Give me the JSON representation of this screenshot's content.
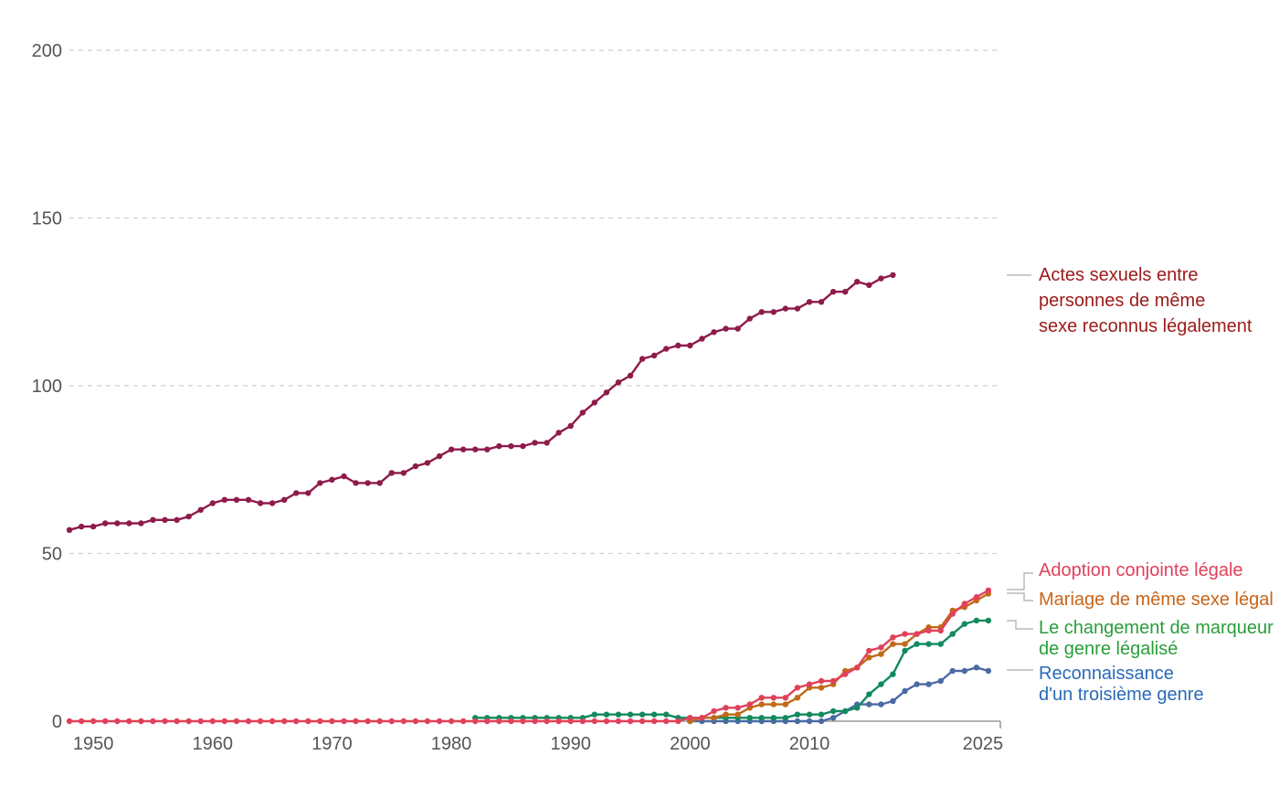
{
  "chart_data": {
    "type": "line",
    "title": "",
    "xlabel": "",
    "ylabel": "",
    "xlim": [
      1948,
      2026
    ],
    "ylim": [
      0,
      200
    ],
    "y_ticks": [
      0,
      50,
      100,
      150,
      200
    ],
    "x_ticks": [
      1950,
      1960,
      1970,
      1980,
      1990,
      2000,
      2010,
      2025
    ],
    "grid": "horizontal dashed",
    "legend": "inline labels at right",
    "series": [
      {
        "key": "same_sex_acts",
        "name": "Actes sexuels entre personnes de même sexe reconnus légalement",
        "label_lines": [
          "Actes sexuels entre",
          "personnes de même",
          "sexe reconnus légalement"
        ],
        "color": "#8e1b4a",
        "label_color": "#9b1a1a",
        "start_year": 1948,
        "values": [
          57,
          58,
          58,
          59,
          59,
          59,
          59,
          60,
          60,
          60,
          61,
          63,
          65,
          66,
          66,
          66,
          65,
          65,
          66,
          68,
          68,
          71,
          72,
          73,
          71,
          71,
          71,
          74,
          74,
          76,
          77,
          79,
          81,
          81,
          81,
          81,
          82,
          82,
          82,
          83,
          83,
          86,
          88,
          92,
          95,
          98,
          101,
          103,
          108,
          109,
          111,
          112,
          112,
          114,
          116,
          117,
          117,
          120,
          122,
          122,
          123,
          123,
          125,
          125,
          128,
          128,
          131,
          130,
          132,
          133
        ]
      },
      {
        "key": "joint_adoption",
        "name": "Adoption conjointe légale",
        "label_lines": [
          "Adoption conjointe légale"
        ],
        "color": "#e0415a",
        "label_color": "#e0415a",
        "start_year": 1948,
        "values": [
          0,
          0,
          0,
          0,
          0,
          0,
          0,
          0,
          0,
          0,
          0,
          0,
          0,
          0,
          0,
          0,
          0,
          0,
          0,
          0,
          0,
          0,
          0,
          0,
          0,
          0,
          0,
          0,
          0,
          0,
          0,
          0,
          0,
          0,
          0,
          0,
          0,
          0,
          0,
          0,
          0,
          0,
          0,
          0,
          0,
          0,
          0,
          0,
          0,
          0,
          0,
          0,
          1,
          1,
          3,
          4,
          4,
          5,
          7,
          7,
          7,
          10,
          11,
          12,
          12,
          14,
          16,
          21,
          22,
          25,
          26,
          26,
          27,
          27,
          32,
          35,
          37,
          39
        ]
      },
      {
        "key": "same_sex_marriage",
        "name": "Mariage de même sexe légal",
        "label_lines": [
          "Mariage de même sexe légal"
        ],
        "color": "#c06a1a",
        "label_color": "#c8651a",
        "start_year": 2000,
        "values": [
          0,
          1,
          1,
          2,
          2,
          4,
          5,
          5,
          5,
          7,
          10,
          10,
          11,
          15,
          16,
          19,
          20,
          23,
          23,
          26,
          28,
          28,
          33,
          34,
          36,
          38
        ]
      },
      {
        "key": "gender_marker",
        "name": "Le changement de marqueur de genre légalisé",
        "label_lines": [
          "Le changement de marqueur",
          "de genre légalisé"
        ],
        "color": "#128a5e",
        "label_color": "#2a9d3a",
        "start_year": 1982,
        "values": [
          1,
          1,
          1,
          1,
          1,
          1,
          1,
          1,
          1,
          1,
          2,
          2,
          2,
          2,
          2,
          2,
          2,
          1,
          1,
          1,
          1,
          1,
          1,
          1,
          1,
          1,
          1,
          2,
          2,
          2,
          3,
          3,
          4,
          8,
          11,
          14,
          21,
          23,
          23,
          23,
          26,
          29,
          30,
          30
        ]
      },
      {
        "key": "third_gender",
        "name": "Reconnaissance d'un troisième genre",
        "label_lines": [
          "Reconnaissance",
          "d'un troisième genre"
        ],
        "color": "#4a6aa5",
        "label_color": "#2a6ab5",
        "start_year": 2000,
        "values": [
          0,
          0,
          0,
          0,
          0,
          0,
          0,
          0,
          0,
          0,
          0,
          0,
          1,
          3,
          5,
          5,
          5,
          6,
          9,
          11,
          11,
          12,
          15,
          15,
          16,
          15
        ]
      }
    ]
  }
}
